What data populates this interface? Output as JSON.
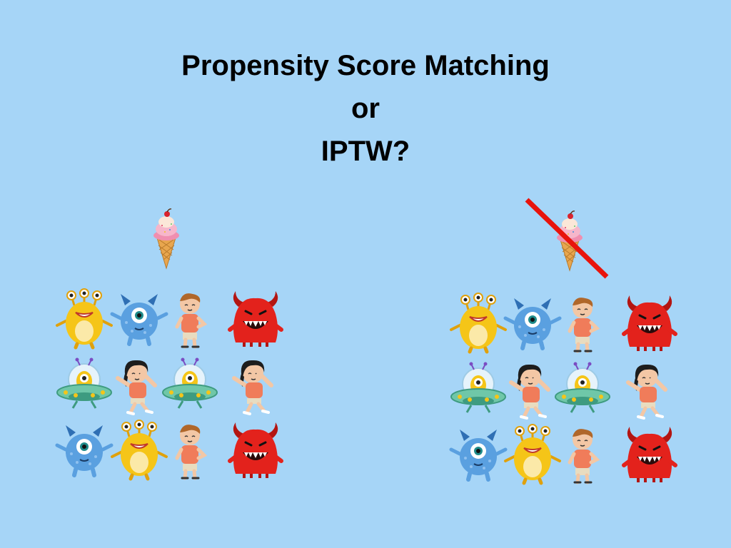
{
  "title": {
    "line1": "Propensity Score Matching",
    "line2": "or",
    "line3": "IPTW?"
  },
  "groups": [
    {
      "side": "left",
      "treatment": "ice-cream-cone",
      "crossed_out": false,
      "grid": [
        [
          "yellow-three-eyed-monster",
          "blue-cyclops-monster",
          "boy",
          "red-horned-monster"
        ],
        [
          "alien-ufo",
          "girl-dabbing",
          "alien-ufo",
          "girl-dabbing"
        ],
        [
          "blue-cyclops-monster",
          "yellow-three-eyed-monster",
          "boy",
          "red-horned-monster"
        ]
      ]
    },
    {
      "side": "right",
      "treatment": "ice-cream-cone",
      "crossed_out": true,
      "grid": [
        [
          "yellow-three-eyed-monster",
          "blue-cyclops-monster",
          "boy",
          "red-horned-monster"
        ],
        [
          "alien-ufo",
          "girl-dabbing",
          "alien-ufo",
          "girl-dabbing"
        ],
        [
          "blue-cyclops-monster",
          "yellow-three-eyed-monster",
          "boy",
          "red-horned-monster"
        ]
      ]
    }
  ],
  "colors": {
    "background": "#a6d5f7",
    "strike": "#e8140c",
    "yellow_monster": "#f5c518",
    "blue_monster": "#5aa0e0",
    "red_monster": "#e3221c",
    "ufo": "#6fc7a8"
  }
}
